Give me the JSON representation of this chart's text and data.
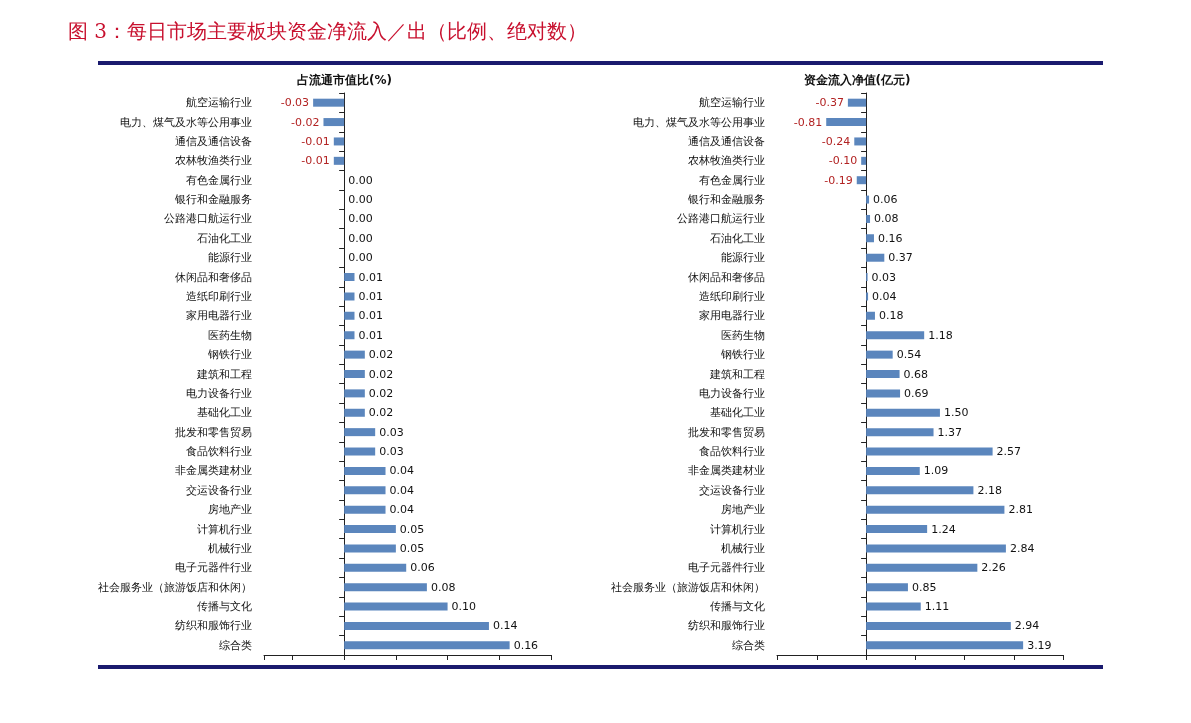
{
  "chart_data": [
    {
      "type": "bar",
      "orientation": "horizontal",
      "title": "图 3：每日市场主要板块资金净流入／出（比例、绝对数）",
      "subtitle": "占流通市值比(%)",
      "tick_labels": "y",
      "color": "#5b86bd",
      "categories": [
        "航空运输行业",
        "电力、煤气及水等公用事业",
        "通信及通信设备",
        "农林牧渔类行业",
        "有色金属行业",
        "银行和金融服务",
        "公路港口航运行业",
        "石油化工业",
        "能源行业",
        "休闲品和奢侈品",
        "造纸印刷行业",
        "家用电器行业",
        "医药生物",
        "钢铁行业",
        "建筑和工程",
        "电力设备行业",
        "基础化工业",
        "批发和零售贸易",
        "食品饮料行业",
        "非金属类建材业",
        "交运设备行业",
        "房地产业",
        "计算机行业",
        "机械行业",
        "电子元器件行业",
        "社会服务业（旅游饭店和休闲）",
        "传播与文化",
        "纺织和服饰行业",
        "综合类"
      ],
      "values": [
        -0.03,
        -0.02,
        -0.01,
        -0.01,
        0,
        0,
        0,
        0,
        0,
        0.01,
        0.01,
        0.01,
        0.01,
        0.02,
        0.02,
        0.02,
        0.02,
        0.03,
        0.03,
        0.04,
        0.04,
        0.04,
        0.05,
        0.05,
        0.06,
        0.08,
        0.1,
        0.14,
        0.16
      ],
      "value_labels": [
        "-0.03",
        "-0.02",
        "-0.01",
        "-0.01",
        "0.00",
        "0.00",
        "0.00",
        "0.00",
        "0.00",
        "0.01",
        "0.01",
        "0.01",
        "0.01",
        "0.02",
        "0.02",
        "0.02",
        "0.02",
        "0.03",
        "0.03",
        "0.04",
        "0.04",
        "0.04",
        "0.05",
        "0.05",
        "0.06",
        "0.08",
        "0.10",
        "0.14",
        "0.16"
      ]
    },
    {
      "type": "bar",
      "orientation": "horizontal",
      "subtitle": "资金流入净值(亿元)",
      "tick_labels": "y",
      "color": "#5b86bd",
      "categories": [
        "航空运输行业",
        "电力、煤气及水等公用事业",
        "通信及通信设备",
        "农林牧渔类行业",
        "有色金属行业",
        "银行和金融服务",
        "公路港口航运行业",
        "石油化工业",
        "能源行业",
        "休闲品和奢侈品",
        "造纸印刷行业",
        "家用电器行业",
        "医药生物",
        "钢铁行业",
        "建筑和工程",
        "电力设备行业",
        "基础化工业",
        "批发和零售贸易",
        "食品饮料行业",
        "非金属类建材业",
        "交运设备行业",
        "房地产业",
        "计算机行业",
        "机械行业",
        "电子元器件行业",
        "社会服务业（旅游饭店和休闲）",
        "传播与文化",
        "纺织和服饰行业",
        "综合类"
      ],
      "values": [
        -0.37,
        -0.81,
        -0.24,
        -0.1,
        -0.19,
        0.06,
        0.08,
        0.16,
        0.37,
        0.03,
        0.04,
        0.18,
        1.18,
        0.54,
        0.68,
        0.69,
        1.5,
        1.37,
        2.57,
        1.09,
        2.18,
        2.81,
        1.24,
        2.84,
        2.26,
        0.85,
        1.11,
        2.94,
        3.19
      ],
      "value_labels": [
        "-0.37",
        "-0.81",
        "-0.24",
        "-0.10",
        "-0.19",
        "0.06",
        "0.08",
        "0.16",
        "0.37",
        "0.03",
        "0.04",
        "0.18",
        "1.18",
        "0.54",
        "0.68",
        "0.69",
        "1.50",
        "1.37",
        "2.57",
        "1.09",
        "2.18",
        "2.81",
        "1.24",
        "2.84",
        "2.26",
        "0.85",
        "1.11",
        "2.94",
        "3.19"
      ]
    }
  ]
}
